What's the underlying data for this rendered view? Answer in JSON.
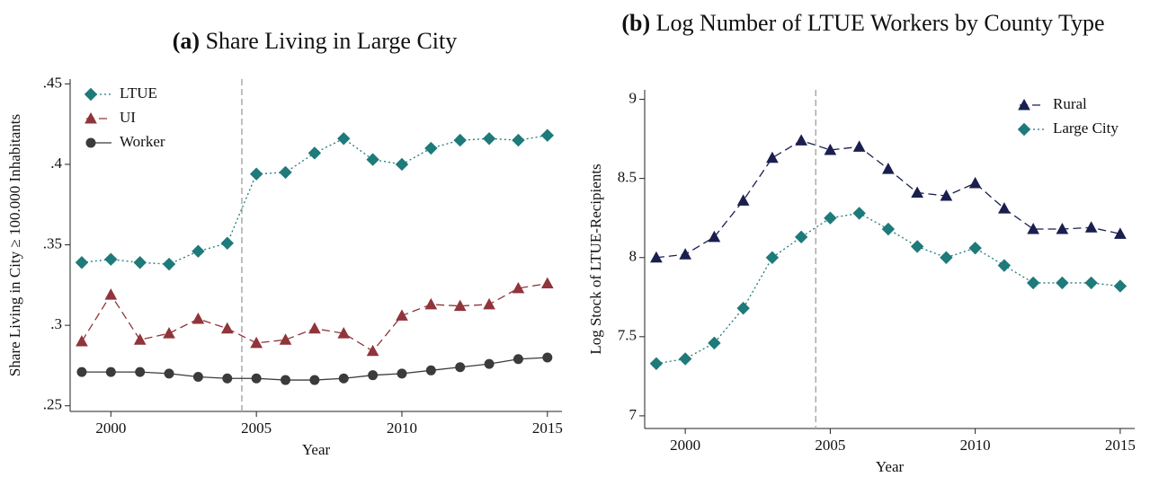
{
  "chart_data": [
    {
      "type": "line",
      "panel_label": "(a)",
      "title": "Share Living in Large City",
      "x_label": "Year",
      "y_label": "Share Living in City ≥ 100.000 Inhabitants",
      "x": [
        1999,
        2000,
        2001,
        2002,
        2003,
        2004,
        2005,
        2006,
        2007,
        2008,
        2009,
        2010,
        2011,
        2012,
        2013,
        2014,
        2015
      ],
      "xlim": [
        1998.6,
        2015.5
      ],
      "xticks": [
        2000,
        2005,
        2010,
        2015
      ],
      "ylim": [
        0.2465,
        0.453
      ],
      "yticks": [
        {
          "value": 0.25,
          "label": ".25"
        },
        {
          "value": 0.3,
          "label": ".3"
        },
        {
          "value": 0.35,
          "label": ".35"
        },
        {
          "value": 0.4,
          "label": ".4"
        },
        {
          "value": 0.45,
          "label": ".45"
        }
      ],
      "vline": 2004.5,
      "legend": "top-left",
      "series": [
        {
          "name": "LTUE",
          "color": "#1f7a7a",
          "marker": "diamond",
          "line_style": "dotted",
          "values": [
            0.339,
            0.341,
            0.339,
            0.338,
            0.346,
            0.351,
            0.394,
            0.395,
            0.407,
            0.416,
            0.403,
            0.4,
            0.41,
            0.415,
            0.416,
            0.415,
            0.418
          ]
        },
        {
          "name": "UI",
          "color": "#90353b",
          "marker": "triangle",
          "line_style": "dashed",
          "values": [
            0.29,
            0.319,
            0.291,
            0.295,
            0.304,
            0.298,
            0.289,
            0.291,
            0.298,
            0.295,
            0.284,
            0.306,
            0.313,
            0.312,
            0.313,
            0.323,
            0.326
          ]
        },
        {
          "name": "Worker",
          "color": "#3b3b3b",
          "marker": "circle",
          "line_style": "solid",
          "values": [
            0.271,
            0.271,
            0.271,
            0.27,
            0.268,
            0.267,
            0.267,
            0.266,
            0.266,
            0.267,
            0.269,
            0.27,
            0.272,
            0.274,
            0.276,
            0.279,
            0.28
          ]
        }
      ]
    },
    {
      "type": "line",
      "panel_label": "(b)",
      "title": "Log Number of LTUE Workers by County Type",
      "x_label": "Year",
      "y_label": "Log Stock of LTUE-Recipients",
      "x": [
        1999,
        2000,
        2001,
        2002,
        2003,
        2004,
        2005,
        2006,
        2007,
        2008,
        2009,
        2010,
        2011,
        2012,
        2013,
        2014,
        2015
      ],
      "xlim": [
        1998.6,
        2015.5
      ],
      "xticks": [
        2000,
        2005,
        2010,
        2015
      ],
      "ylim": [
        6.92,
        9.06
      ],
      "yticks": [
        7,
        7.5,
        8,
        8.5,
        9
      ],
      "vline": 2004.5,
      "legend": "top-right",
      "series": [
        {
          "name": "Rural",
          "color": "#1a1f4f",
          "marker": "triangle",
          "line_style": "dashed",
          "values": [
            8.0,
            8.02,
            8.13,
            8.36,
            8.63,
            8.74,
            8.68,
            8.7,
            8.56,
            8.41,
            8.39,
            8.47,
            8.31,
            8.18,
            8.18,
            8.19,
            8.15
          ]
        },
        {
          "name": "Large City",
          "color": "#1f7a7a",
          "marker": "diamond",
          "line_style": "dotted",
          "values": [
            7.33,
            7.36,
            7.46,
            7.68,
            8.0,
            8.13,
            8.25,
            8.28,
            8.18,
            8.07,
            8.0,
            8.06,
            7.95,
            7.84,
            7.84,
            7.84,
            7.82
          ]
        }
      ]
    }
  ]
}
